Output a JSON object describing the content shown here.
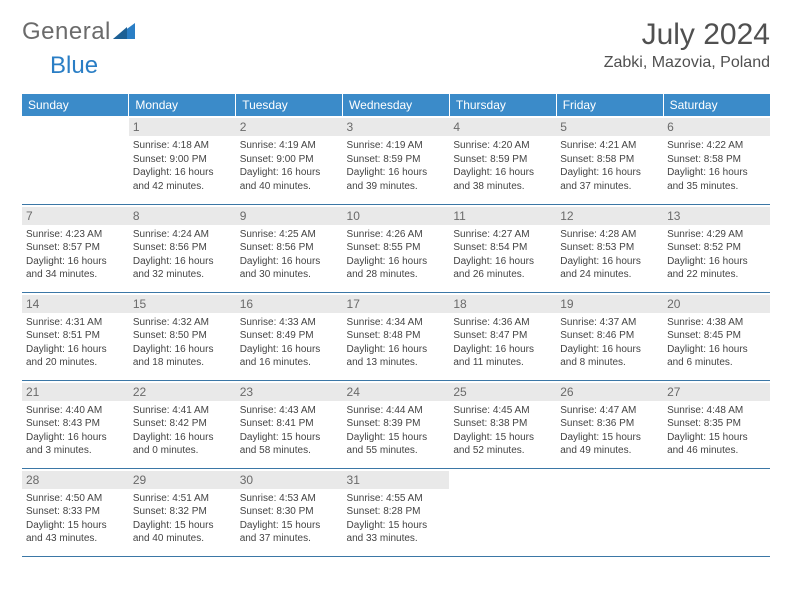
{
  "brand": {
    "word1": "General",
    "word2": "Blue"
  },
  "header": {
    "title": "July 2024",
    "location": "Zabki, Mazovia, Poland"
  },
  "colors": {
    "header_bg": "#3b8bc9",
    "header_fg": "#ffffff",
    "daynum_bg": "#e9e9e9",
    "rule": "#3b77a6",
    "brand_blue": "#2a7ec5",
    "brand_grey": "#6b6b6b"
  },
  "weekdays": [
    "Sunday",
    "Monday",
    "Tuesday",
    "Wednesday",
    "Thursday",
    "Friday",
    "Saturday"
  ],
  "weeks": [
    [
      {
        "blank": true
      },
      {
        "day": "1",
        "sunrise": "Sunrise: 4:18 AM",
        "sunset": "Sunset: 9:00 PM",
        "daylight": "Daylight: 16 hours and 42 minutes."
      },
      {
        "day": "2",
        "sunrise": "Sunrise: 4:19 AM",
        "sunset": "Sunset: 9:00 PM",
        "daylight": "Daylight: 16 hours and 40 minutes."
      },
      {
        "day": "3",
        "sunrise": "Sunrise: 4:19 AM",
        "sunset": "Sunset: 8:59 PM",
        "daylight": "Daylight: 16 hours and 39 minutes."
      },
      {
        "day": "4",
        "sunrise": "Sunrise: 4:20 AM",
        "sunset": "Sunset: 8:59 PM",
        "daylight": "Daylight: 16 hours and 38 minutes."
      },
      {
        "day": "5",
        "sunrise": "Sunrise: 4:21 AM",
        "sunset": "Sunset: 8:58 PM",
        "daylight": "Daylight: 16 hours and 37 minutes."
      },
      {
        "day": "6",
        "sunrise": "Sunrise: 4:22 AM",
        "sunset": "Sunset: 8:58 PM",
        "daylight": "Daylight: 16 hours and 35 minutes."
      }
    ],
    [
      {
        "day": "7",
        "sunrise": "Sunrise: 4:23 AM",
        "sunset": "Sunset: 8:57 PM",
        "daylight": "Daylight: 16 hours and 34 minutes."
      },
      {
        "day": "8",
        "sunrise": "Sunrise: 4:24 AM",
        "sunset": "Sunset: 8:56 PM",
        "daylight": "Daylight: 16 hours and 32 minutes."
      },
      {
        "day": "9",
        "sunrise": "Sunrise: 4:25 AM",
        "sunset": "Sunset: 8:56 PM",
        "daylight": "Daylight: 16 hours and 30 minutes."
      },
      {
        "day": "10",
        "sunrise": "Sunrise: 4:26 AM",
        "sunset": "Sunset: 8:55 PM",
        "daylight": "Daylight: 16 hours and 28 minutes."
      },
      {
        "day": "11",
        "sunrise": "Sunrise: 4:27 AM",
        "sunset": "Sunset: 8:54 PM",
        "daylight": "Daylight: 16 hours and 26 minutes."
      },
      {
        "day": "12",
        "sunrise": "Sunrise: 4:28 AM",
        "sunset": "Sunset: 8:53 PM",
        "daylight": "Daylight: 16 hours and 24 minutes."
      },
      {
        "day": "13",
        "sunrise": "Sunrise: 4:29 AM",
        "sunset": "Sunset: 8:52 PM",
        "daylight": "Daylight: 16 hours and 22 minutes."
      }
    ],
    [
      {
        "day": "14",
        "sunrise": "Sunrise: 4:31 AM",
        "sunset": "Sunset: 8:51 PM",
        "daylight": "Daylight: 16 hours and 20 minutes."
      },
      {
        "day": "15",
        "sunrise": "Sunrise: 4:32 AM",
        "sunset": "Sunset: 8:50 PM",
        "daylight": "Daylight: 16 hours and 18 minutes."
      },
      {
        "day": "16",
        "sunrise": "Sunrise: 4:33 AM",
        "sunset": "Sunset: 8:49 PM",
        "daylight": "Daylight: 16 hours and 16 minutes."
      },
      {
        "day": "17",
        "sunrise": "Sunrise: 4:34 AM",
        "sunset": "Sunset: 8:48 PM",
        "daylight": "Daylight: 16 hours and 13 minutes."
      },
      {
        "day": "18",
        "sunrise": "Sunrise: 4:36 AM",
        "sunset": "Sunset: 8:47 PM",
        "daylight": "Daylight: 16 hours and 11 minutes."
      },
      {
        "day": "19",
        "sunrise": "Sunrise: 4:37 AM",
        "sunset": "Sunset: 8:46 PM",
        "daylight": "Daylight: 16 hours and 8 minutes."
      },
      {
        "day": "20",
        "sunrise": "Sunrise: 4:38 AM",
        "sunset": "Sunset: 8:45 PM",
        "daylight": "Daylight: 16 hours and 6 minutes."
      }
    ],
    [
      {
        "day": "21",
        "sunrise": "Sunrise: 4:40 AM",
        "sunset": "Sunset: 8:43 PM",
        "daylight": "Daylight: 16 hours and 3 minutes."
      },
      {
        "day": "22",
        "sunrise": "Sunrise: 4:41 AM",
        "sunset": "Sunset: 8:42 PM",
        "daylight": "Daylight: 16 hours and 0 minutes."
      },
      {
        "day": "23",
        "sunrise": "Sunrise: 4:43 AM",
        "sunset": "Sunset: 8:41 PM",
        "daylight": "Daylight: 15 hours and 58 minutes."
      },
      {
        "day": "24",
        "sunrise": "Sunrise: 4:44 AM",
        "sunset": "Sunset: 8:39 PM",
        "daylight": "Daylight: 15 hours and 55 minutes."
      },
      {
        "day": "25",
        "sunrise": "Sunrise: 4:45 AM",
        "sunset": "Sunset: 8:38 PM",
        "daylight": "Daylight: 15 hours and 52 minutes."
      },
      {
        "day": "26",
        "sunrise": "Sunrise: 4:47 AM",
        "sunset": "Sunset: 8:36 PM",
        "daylight": "Daylight: 15 hours and 49 minutes."
      },
      {
        "day": "27",
        "sunrise": "Sunrise: 4:48 AM",
        "sunset": "Sunset: 8:35 PM",
        "daylight": "Daylight: 15 hours and 46 minutes."
      }
    ],
    [
      {
        "day": "28",
        "sunrise": "Sunrise: 4:50 AM",
        "sunset": "Sunset: 8:33 PM",
        "daylight": "Daylight: 15 hours and 43 minutes."
      },
      {
        "day": "29",
        "sunrise": "Sunrise: 4:51 AM",
        "sunset": "Sunset: 8:32 PM",
        "daylight": "Daylight: 15 hours and 40 minutes."
      },
      {
        "day": "30",
        "sunrise": "Sunrise: 4:53 AM",
        "sunset": "Sunset: 8:30 PM",
        "daylight": "Daylight: 15 hours and 37 minutes."
      },
      {
        "day": "31",
        "sunrise": "Sunrise: 4:55 AM",
        "sunset": "Sunset: 8:28 PM",
        "daylight": "Daylight: 15 hours and 33 minutes."
      },
      {
        "blank": true
      },
      {
        "blank": true
      },
      {
        "blank": true
      }
    ]
  ]
}
